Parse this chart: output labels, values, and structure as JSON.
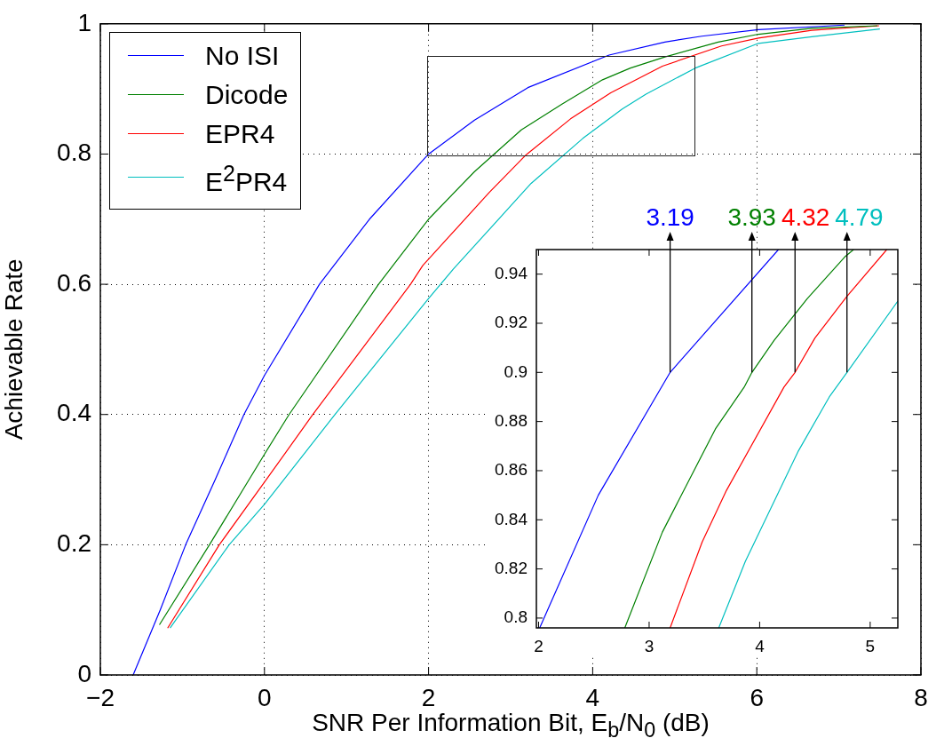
{
  "chart_data": [
    {
      "type": "line",
      "xlabel": "SNR Per Information Bit, E$_{b}$/N$_{0}$ (dB)",
      "ylabel": "Achievable Rate",
      "xlim": [
        -2,
        8
      ],
      "ylim": [
        0,
        1
      ],
      "xticks": [
        -2,
        0,
        2,
        4,
        6,
        8
      ],
      "yticks": [
        0,
        0.2,
        0.4,
        0.6,
        0.8,
        1
      ],
      "grid": true,
      "legend": "top left",
      "series": [
        {
          "name": "No ISI",
          "color": "#0000ff",
          "x": [
            -1.6,
            -1.27,
            -0.96,
            -0.6,
            -0.25,
            0,
            0.67,
            1.28,
            2.0,
            2.56,
            3.21,
            4.2,
            4.88,
            5.33,
            6.02,
            7.07
          ],
          "values": [
            0,
            0.1,
            0.2,
            0.3,
            0.4,
            0.46,
            0.6,
            0.7,
            0.8,
            0.852,
            0.902,
            0.952,
            0.972,
            0.981,
            0.991,
            0.998
          ]
        },
        {
          "name": "Dicode",
          "color": "#008000",
          "x": [
            -1.28,
            -0.67,
            0,
            0.3,
            1.39,
            2.0,
            2.56,
            3.13,
            3.63,
            4.12,
            4.46,
            4.88,
            5.53,
            6.02,
            6.67,
            7.47
          ],
          "values": [
            0.077,
            0.2,
            0.339,
            0.4,
            0.6,
            0.7,
            0.773,
            0.837,
            0.877,
            0.914,
            0.932,
            0.949,
            0.972,
            0.984,
            0.993,
            0.997
          ]
        },
        {
          "name": "EPR4",
          "color": "#ff0000",
          "x": [
            -1.18,
            -0.55,
            0,
            0.59,
            1.78,
            1.93,
            2.74,
            3.19,
            3.73,
            4.22,
            4.85,
            5.57,
            6.02,
            6.67,
            7.49
          ],
          "values": [
            0.072,
            0.2,
            0.296,
            0.4,
            0.6,
            0.629,
            0.741,
            0.799,
            0.854,
            0.894,
            0.935,
            0.966,
            0.978,
            0.99,
            0.997
          ]
        },
        {
          "name": "E$^{2}$PR4",
          "color": "#00bfbf",
          "x": [
            -1.15,
            -0.43,
            0,
            0.86,
            2.0,
            2.3,
            3.25,
            3.88,
            4.36,
            4.65,
            5.25,
            6.02,
            6.67,
            7.5
          ],
          "values": [
            0.072,
            0.2,
            0.262,
            0.4,
            0.578,
            0.623,
            0.755,
            0.824,
            0.869,
            0.892,
            0.932,
            0.97,
            0.98,
            0.992
          ]
        }
      ]
    },
    {
      "type": "line",
      "xlim": [
        1.98,
        5.25
      ],
      "ylim": [
        0.796,
        0.95
      ],
      "xticks": [
        2,
        3,
        4,
        5
      ],
      "yticks": [
        0.8,
        0.82,
        0.84,
        0.86,
        0.88,
        0.9,
        0.92,
        0.94
      ],
      "series": [
        {
          "color": "#0000ff",
          "x": [
            2.01,
            2.54,
            3.19,
            4.17
          ],
          "values": [
            0.796,
            0.85,
            0.9,
            0.95
          ]
        },
        {
          "color": "#008000",
          "x": [
            2.78,
            3.12,
            3.6,
            3.86,
            3.93,
            4.13,
            4.43,
            4.77,
            4.85
          ],
          "values": [
            0.796,
            0.835,
            0.877,
            0.894,
            0.9,
            0.913,
            0.93,
            0.947,
            0.95
          ]
        },
        {
          "color": "#ff0000",
          "x": [
            3.19,
            3.48,
            3.7,
            4.22,
            4.32,
            4.5,
            4.79,
            5.15
          ],
          "values": [
            0.796,
            0.831,
            0.852,
            0.894,
            0.9,
            0.914,
            0.931,
            0.95
          ]
        },
        {
          "color": "#00bfbf",
          "x": [
            3.63,
            3.87,
            4.35,
            4.63,
            4.79,
            5.25
          ],
          "values": [
            0.796,
            0.823,
            0.868,
            0.89,
            0.9,
            0.929
          ]
        }
      ],
      "annotations": [
        {
          "text": "3.19",
          "x": 3.19,
          "y": 0.9
        },
        {
          "text": "3.93",
          "x": 3.93,
          "y": 0.9
        },
        {
          "text": "4.32",
          "x": 4.32,
          "y": 0.9
        },
        {
          "text": "4.79",
          "x": 4.79,
          "y": 0.9
        }
      ]
    }
  ]
}
